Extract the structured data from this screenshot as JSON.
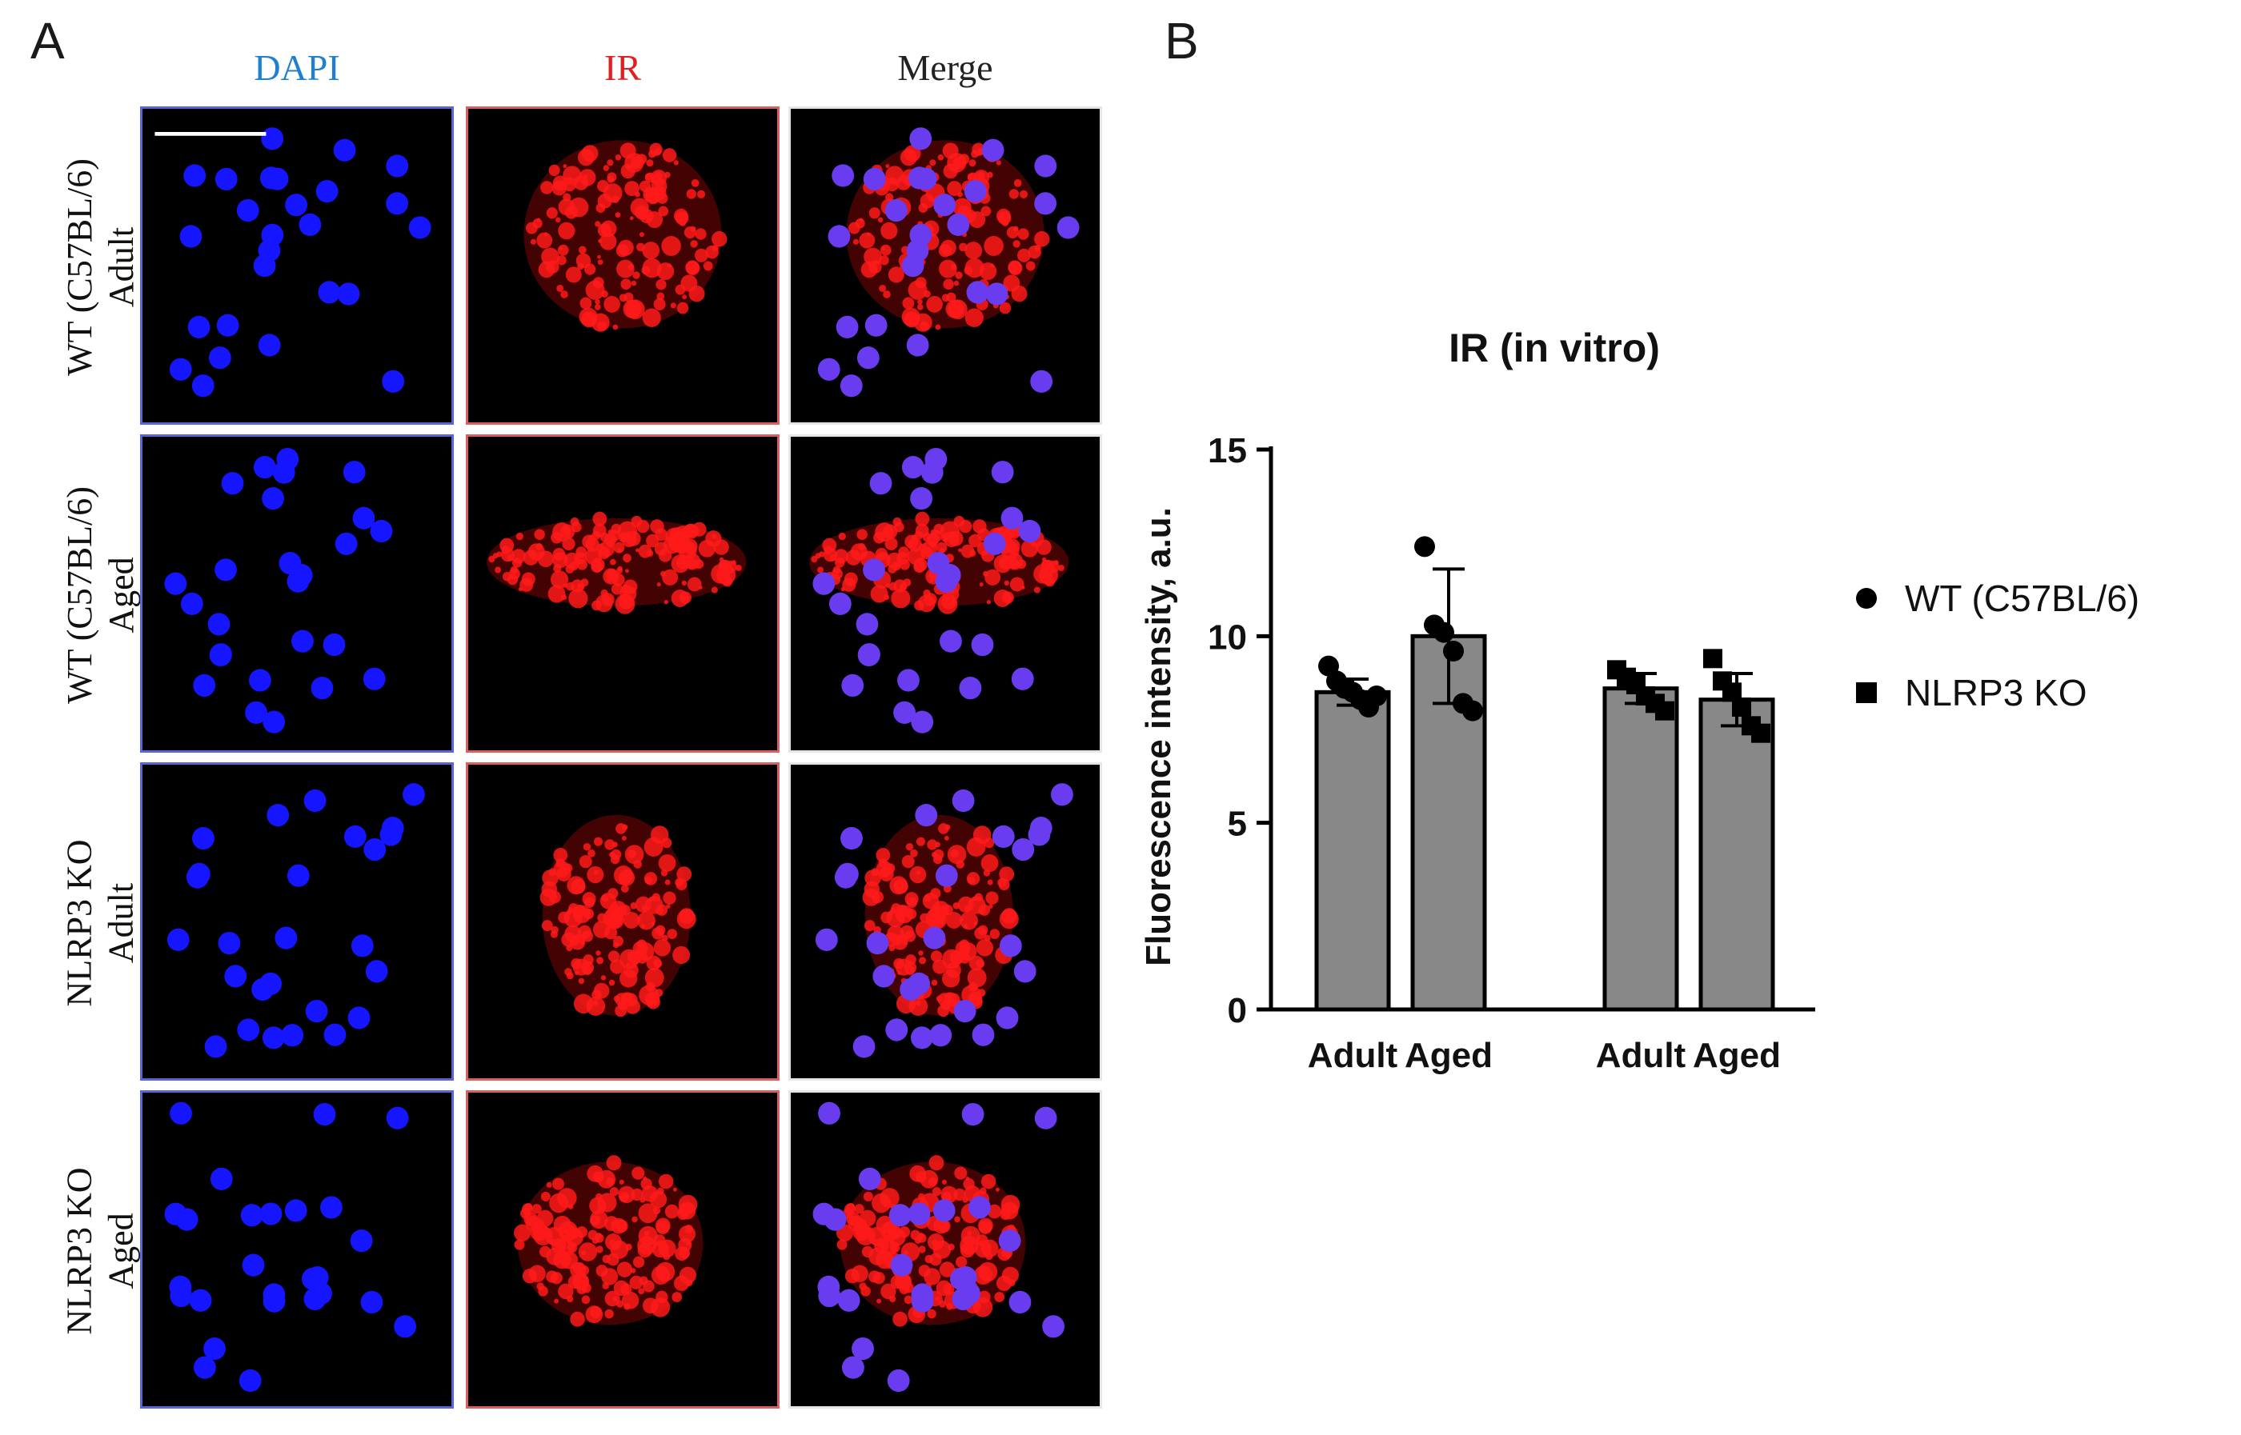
{
  "panel_a": {
    "letter": "A",
    "columns": [
      {
        "label": "DAPI",
        "color": "#1f7fd0"
      },
      {
        "label": "IR",
        "color": "#e02020"
      },
      {
        "label": "Merge",
        "color": "#222222"
      }
    ],
    "rows": [
      {
        "line1": "WT (C57BL/6)",
        "line2": "Adult"
      },
      {
        "line1": "WT (C57BL/6)",
        "line2": "Aged"
      },
      {
        "line1": "NLRP3 KO",
        "line2": "Adult"
      },
      {
        "line1": "NLRP3 KO",
        "line2": "Aged"
      }
    ]
  },
  "panel_b": {
    "letter": "B"
  },
  "chart_data": {
    "type": "bar",
    "title": "IR (in vitro)",
    "ylabel": "Fluorescence intensity, a.u.",
    "xlabel": "",
    "ylim": [
      0,
      15
    ],
    "yticks": [
      0,
      5,
      10,
      15
    ],
    "categories": [
      "Adult",
      "Aged",
      "Adult",
      "Aged"
    ],
    "groups": [
      "WT (C57BL/6)",
      "WT (C57BL/6)",
      "NLRP3 KO",
      "NLRP3 KO"
    ],
    "values": [
      8.5,
      10.0,
      8.6,
      8.3
    ],
    "errors": [
      0.35,
      1.8,
      0.4,
      0.7
    ],
    "points": [
      [
        9.2,
        8.8,
        8.6,
        8.5,
        8.3,
        8.1,
        8.4
      ],
      [
        12.4,
        10.3,
        10.1,
        9.6,
        8.2,
        8.0
      ],
      [
        9.1,
        8.9,
        8.7,
        8.4,
        8.2,
        8.0
      ],
      [
        9.4,
        8.8,
        8.5,
        8.1,
        7.6,
        7.4
      ]
    ],
    "bar_color": "#888888",
    "legend": {
      "position": "right",
      "entries": [
        {
          "label": "WT (C57BL/6)",
          "marker": "circle"
        },
        {
          "label": "NLRP3 KO",
          "marker": "square"
        }
      ]
    },
    "grid": false
  }
}
